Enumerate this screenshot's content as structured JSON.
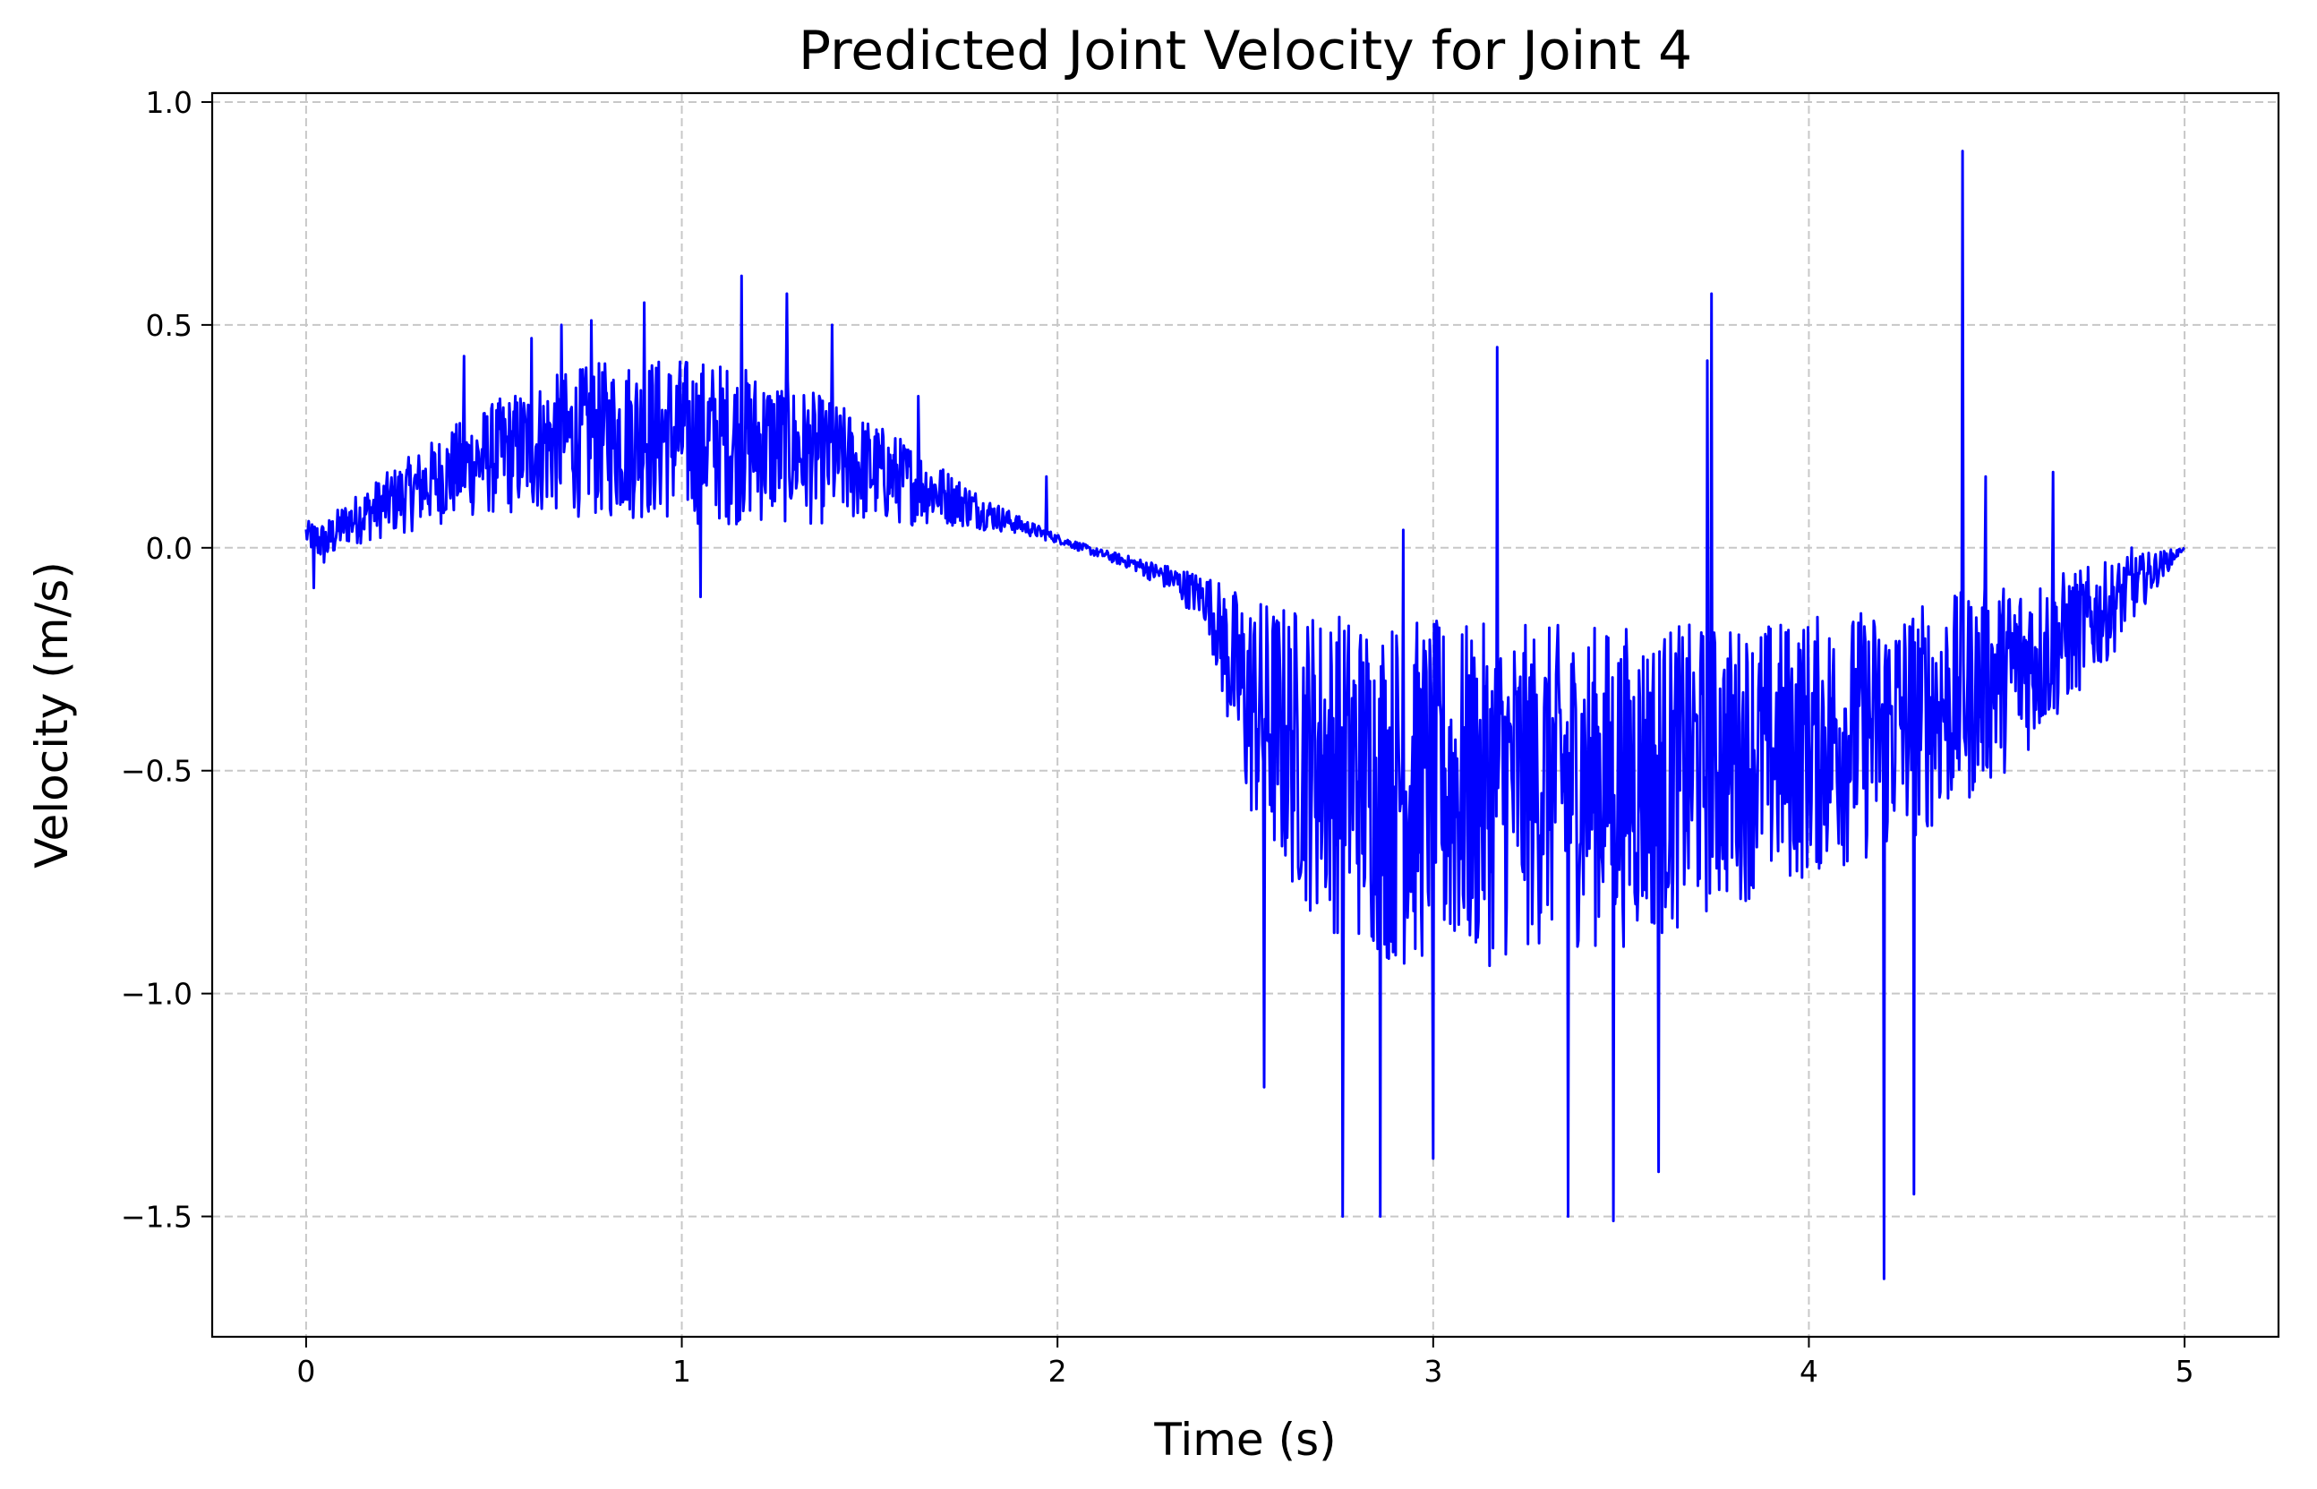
{
  "chart_data": {
    "type": "line",
    "title": "Predicted Joint Velocity for Joint 4",
    "xlabel": "Time (s)",
    "ylabel": "Velocity (m/s)",
    "xlim": [
      -0.25,
      5.25
    ],
    "ylim": [
      -1.77,
      1.02
    ],
    "xticks": [
      0,
      1,
      2,
      3,
      4,
      5
    ],
    "xtick_labels": [
      "0",
      "1",
      "2",
      "3",
      "4",
      "5"
    ],
    "yticks": [
      1.0,
      0.5,
      0.0,
      -0.5,
      -1.0,
      -1.5
    ],
    "ytick_labels": [
      "1.0",
      "0.5",
      "0.0",
      "−0.5",
      "−1.0",
      "−1.5"
    ],
    "grid": true,
    "legend": "none",
    "series": [
      {
        "color": "#0000ff",
        "line_width": 3,
        "envelope_description": "noisy velocity signal sampled over 0-5 s",
        "envelope": {
          "t": [
            0.0,
            0.05,
            0.1,
            0.2,
            0.3,
            0.4,
            0.5,
            0.6,
            0.7,
            0.8,
            0.9,
            1.0,
            1.1,
            1.2,
            1.3,
            1.4,
            1.5,
            1.6,
            1.7,
            1.8,
            1.9,
            2.0,
            2.1,
            2.2,
            2.3,
            2.4,
            2.45,
            2.5,
            2.6,
            2.7,
            2.8,
            2.9,
            3.0,
            3.1,
            3.2,
            3.3,
            3.4,
            3.5,
            3.6,
            3.7,
            3.8,
            3.9,
            4.0,
            4.1,
            4.2,
            4.3,
            4.4,
            4.5,
            4.6,
            4.7,
            4.8,
            4.9,
            5.0
          ],
          "upper": [
            0.06,
            0.06,
            0.1,
            0.16,
            0.22,
            0.28,
            0.33,
            0.37,
            0.4,
            0.42,
            0.43,
            0.43,
            0.42,
            0.4,
            0.37,
            0.33,
            0.29,
            0.24,
            0.18,
            0.12,
            0.07,
            0.03,
            0.0,
            -0.02,
            -0.04,
            -0.06,
            -0.08,
            -0.1,
            -0.12,
            -0.13,
            -0.14,
            -0.15,
            -0.16,
            -0.17,
            -0.17,
            -0.17,
            -0.17,
            -0.17,
            -0.17,
            -0.17,
            -0.17,
            -0.16,
            -0.15,
            -0.14,
            -0.13,
            -0.12,
            -0.1,
            -0.08,
            -0.06,
            -0.05,
            -0.03,
            -0.01,
            0.0
          ],
          "lower": [
            0.0,
            -0.05,
            0.0,
            0.02,
            0.04,
            0.06,
            0.07,
            0.07,
            0.07,
            0.06,
            0.06,
            0.05,
            0.05,
            0.05,
            0.05,
            0.05,
            0.05,
            0.05,
            0.05,
            0.04,
            0.03,
            0.01,
            -0.02,
            -0.05,
            -0.1,
            -0.18,
            -0.4,
            -0.6,
            -0.75,
            -0.85,
            -0.9,
            -0.95,
            -0.95,
            -0.95,
            -0.93,
            -0.9,
            -0.9,
            -0.9,
            -0.88,
            -0.85,
            -0.8,
            -0.78,
            -0.75,
            -0.72,
            -0.7,
            -0.65,
            -0.6,
            -0.52,
            -0.45,
            -0.35,
            -0.25,
            -0.12,
            0.0
          ]
        },
        "spikes": [
          [
            0.02,
            -0.09
          ],
          [
            0.42,
            0.43
          ],
          [
            0.6,
            0.47
          ],
          [
            0.68,
            0.5
          ],
          [
            0.76,
            0.51
          ],
          [
            0.9,
            0.55
          ],
          [
            1.05,
            -0.11
          ],
          [
            1.16,
            0.61
          ],
          [
            1.28,
            0.57
          ],
          [
            1.4,
            0.5
          ],
          [
            1.63,
            0.34
          ],
          [
            1.97,
            0.16
          ],
          [
            2.55,
            0.04
          ],
          [
            2.55,
            -1.21
          ],
          [
            2.76,
            -1.5
          ],
          [
            2.86,
            -1.5
          ],
          [
            2.92,
            0.04
          ],
          [
            3.0,
            -1.37
          ],
          [
            3.17,
            0.45
          ],
          [
            3.36,
            -1.5
          ],
          [
            3.48,
            -1.51
          ],
          [
            3.6,
            -1.4
          ],
          [
            3.74,
            0.57
          ],
          [
            3.73,
            0.42
          ],
          [
            4.2,
            -1.64
          ],
          [
            4.28,
            -1.45
          ],
          [
            4.41,
            0.89
          ],
          [
            4.47,
            0.16
          ],
          [
            4.65,
            0.17
          ],
          [
            4.86,
            0.0
          ]
        ]
      }
    ]
  }
}
